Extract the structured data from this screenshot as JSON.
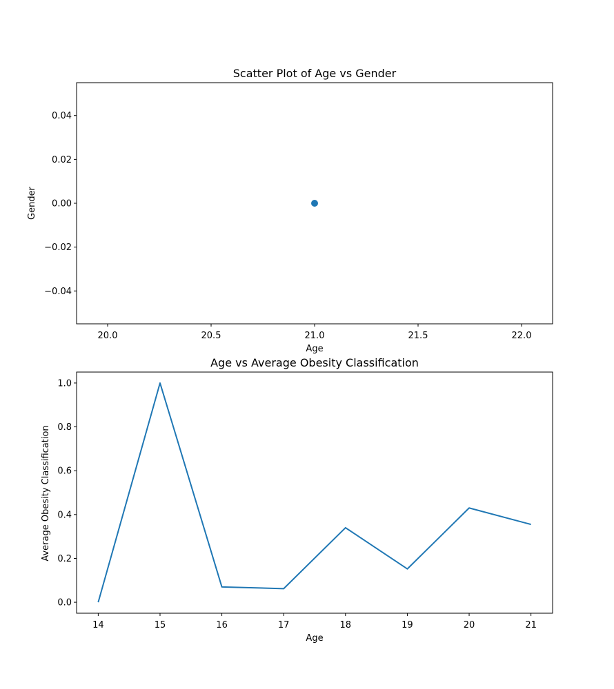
{
  "chart_data": [
    {
      "type": "scatter",
      "title": "Scatter Plot of Age vs Gender",
      "xlabel": "Age",
      "ylabel": "Gender",
      "xlim": [
        19.85,
        22.15
      ],
      "ylim": [
        -0.055,
        0.055
      ],
      "xticks": [
        "20.0",
        "20.5",
        "21.0",
        "21.5",
        "22.0"
      ],
      "xtick_values": [
        20.0,
        20.5,
        21.0,
        21.5,
        22.0
      ],
      "yticks": [
        "−0.04",
        "−0.02",
        "0.00",
        "0.02",
        "0.04"
      ],
      "ytick_values": [
        -0.04,
        -0.02,
        0.0,
        0.02,
        0.04
      ],
      "grid": false,
      "color": "#1f77b4",
      "points": [
        {
          "x": 21.0,
          "y": 0.0
        }
      ]
    },
    {
      "type": "line",
      "title": "Age vs Average Obesity Classification",
      "xlabel": "Age",
      "ylabel": "Average Obesity Classification",
      "xlim": [
        13.65,
        21.35
      ],
      "ylim": [
        -0.05,
        1.05
      ],
      "xticks": [
        "14",
        "15",
        "16",
        "17",
        "18",
        "19",
        "20",
        "21"
      ],
      "xtick_values": [
        14,
        15,
        16,
        17,
        18,
        19,
        20,
        21
      ],
      "yticks": [
        "0.0",
        "0.2",
        "0.4",
        "0.6",
        "0.8",
        "1.0"
      ],
      "ytick_values": [
        0.0,
        0.2,
        0.4,
        0.6,
        0.8,
        1.0
      ],
      "grid": false,
      "color": "#1f77b4",
      "x": [
        14,
        15,
        16,
        17,
        18,
        19,
        20,
        21
      ],
      "y": [
        0.0,
        1.0,
        0.07,
        0.062,
        0.34,
        0.152,
        0.43,
        0.355
      ]
    }
  ]
}
